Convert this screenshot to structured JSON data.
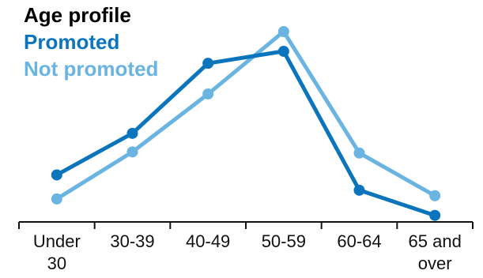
{
  "chart_data": {
    "type": "line",
    "title": "Age profile",
    "categories": [
      [
        "Under",
        "30"
      ],
      [
        "30-39"
      ],
      [
        "40-49"
      ],
      [
        "50-59"
      ],
      [
        "60-64"
      ],
      [
        "65 and",
        "over"
      ]
    ],
    "series": [
      {
        "name": "Promoted",
        "color": "#0a75bd",
        "values": [
          21.5,
          40.5,
          72.5,
          78.0,
          14.5,
          3.0
        ]
      },
      {
        "name": "Not promoted",
        "color": "#6ab4e2",
        "values": [
          10.5,
          32.0,
          58.5,
          87.0,
          31.5,
          12.0
        ]
      }
    ],
    "ylim": [
      0,
      100
    ],
    "grid": false,
    "legend_placement": "top-left",
    "axis_color": "#111111",
    "title_color": "#000000"
  }
}
